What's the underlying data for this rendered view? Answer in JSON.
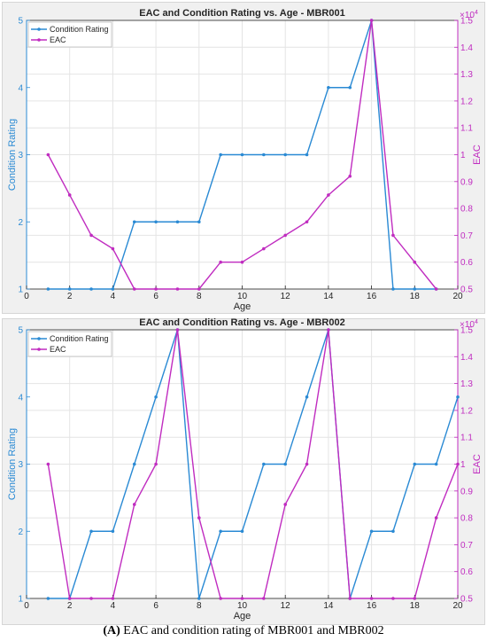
{
  "chart_data": [
    {
      "type": "line",
      "title": "EAC and Condition Rating vs. Age - MBR001",
      "xlabel": "Age",
      "ylabel_left": "Condition Rating",
      "ylabel_right": "EAC",
      "right_exponent": "×10^4",
      "xlim": [
        0,
        20
      ],
      "ylim_left": [
        1,
        5
      ],
      "ylim_right": [
        0.5,
        1.5
      ],
      "xticks": [
        0,
        2,
        4,
        6,
        8,
        10,
        12,
        14,
        16,
        18,
        20
      ],
      "yticks_left": [
        1,
        2,
        3,
        4,
        5
      ],
      "yticks_right": [
        0.5,
        0.6,
        0.7,
        0.8,
        0.9,
        1,
        1.1,
        1.2,
        1.3,
        1.4,
        1.5
      ],
      "legend_position": "top-left",
      "grid": true,
      "series": [
        {
          "name": "Condition Rating",
          "axis": "left",
          "color": "#2a8ad4",
          "x": [
            1,
            2,
            3,
            4,
            5,
            6,
            7,
            8,
            9,
            10,
            11,
            12,
            13,
            14,
            15,
            16,
            17,
            18,
            19
          ],
          "values": [
            1,
            1,
            1,
            1,
            2,
            2,
            2,
            2,
            3,
            3,
            3,
            3,
            3,
            4,
            4,
            5,
            1,
            1,
            1
          ]
        },
        {
          "name": "EAC",
          "axis": "right",
          "color": "#c02cc0",
          "x": [
            1,
            2,
            3,
            4,
            5,
            6,
            7,
            8,
            9,
            10,
            11,
            12,
            13,
            14,
            15,
            16,
            17,
            18,
            19
          ],
          "values": [
            1.0,
            0.85,
            0.7,
            0.65,
            0.5,
            0.5,
            0.5,
            0.5,
            0.6,
            0.6,
            0.65,
            0.7,
            0.75,
            0.85,
            0.92,
            1.5,
            0.7,
            0.6,
            0.5
          ]
        }
      ]
    },
    {
      "type": "line",
      "title": "EAC and Condition Rating vs. Age - MBR002",
      "xlabel": "Age",
      "ylabel_left": "Condition Rating",
      "ylabel_right": "EAC",
      "right_exponent": "×10^4",
      "xlim": [
        0,
        20
      ],
      "ylim_left": [
        1,
        5
      ],
      "ylim_right": [
        0.5,
        1.5
      ],
      "xticks": [
        0,
        2,
        4,
        6,
        8,
        10,
        12,
        14,
        16,
        18,
        20
      ],
      "yticks_left": [
        1,
        2,
        3,
        4,
        5
      ],
      "yticks_right": [
        0.5,
        0.6,
        0.7,
        0.8,
        0.9,
        1,
        1.1,
        1.2,
        1.3,
        1.4,
        1.5
      ],
      "legend_position": "top-left",
      "grid": true,
      "series": [
        {
          "name": "Condition Rating",
          "axis": "left",
          "color": "#2a8ad4",
          "x": [
            1,
            2,
            3,
            4,
            5,
            6,
            7,
            8,
            9,
            10,
            11,
            12,
            13,
            14,
            15,
            16,
            17,
            18,
            19,
            20
          ],
          "values": [
            1,
            1,
            2,
            2,
            3,
            4,
            5,
            1,
            2,
            2,
            3,
            3,
            4,
            5,
            1,
            2,
            2,
            3,
            3,
            4
          ]
        },
        {
          "name": "EAC",
          "axis": "right",
          "color": "#c02cc0",
          "x": [
            1,
            2,
            3,
            4,
            5,
            6,
            7,
            8,
            9,
            10,
            11,
            12,
            13,
            14,
            15,
            16,
            17,
            18,
            19,
            20
          ],
          "values": [
            1.0,
            0.5,
            0.5,
            0.5,
            0.85,
            1.0,
            1.5,
            0.8,
            0.5,
            0.5,
            0.5,
            0.85,
            1.0,
            1.5,
            0.5,
            0.5,
            0.5,
            0.5,
            0.8,
            1.0
          ]
        }
      ]
    }
  ],
  "caption": {
    "label": "(A)",
    "text": " EAC and condition rating of MBR001 and MBR002"
  }
}
